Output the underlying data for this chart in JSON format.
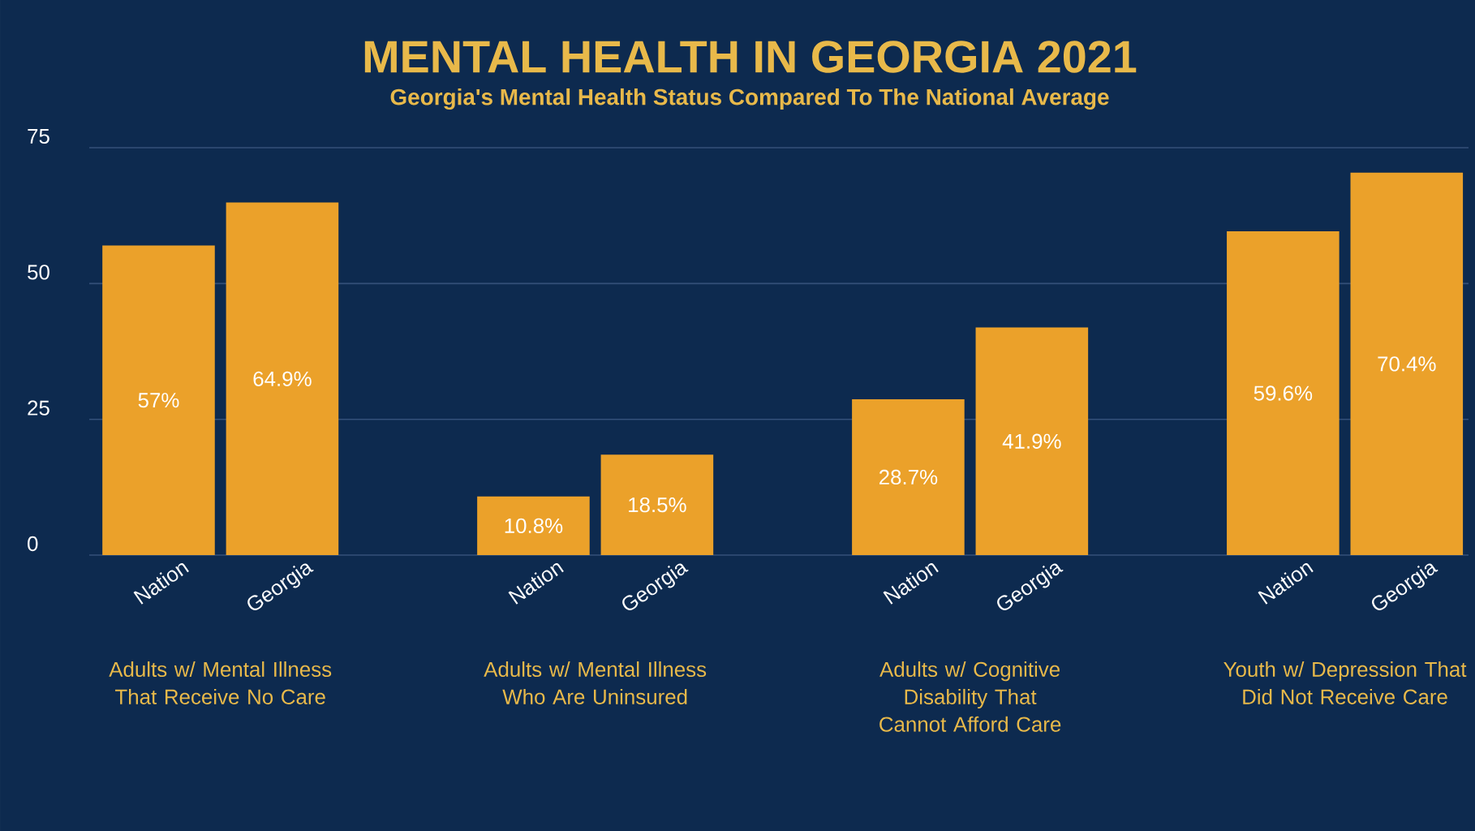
{
  "chart_data": {
    "type": "bar",
    "title": "MENTAL HEALTH IN GEORGIA 2021",
    "subtitle": "Georgia's Mental Health Status Compared To The National Average",
    "categories": [
      "Adults w/ Mental Illness That Receive No Care",
      "Adults w/ Mental Illness Who Are Uninsured",
      "Adults w/ Cognitive Disability That Cannot Afford Care",
      "Youth w/ Depression That Did Not Receive Care"
    ],
    "series": [
      {
        "name": "Nation",
        "color": "#eba12a",
        "values": [
          57,
          10.8,
          28.7,
          59.6
        ],
        "value_labels": [
          "57%",
          "10.8%",
          "28.7%",
          "59.6%"
        ]
      },
      {
        "name": "Georgia",
        "color": "#eba12a",
        "values": [
          64.9,
          18.5,
          41.9,
          70.4
        ],
        "value_labels": [
          "64.9%",
          "18.5%",
          "41.9%",
          "70.4%"
        ]
      }
    ],
    "ylim": [
      0,
      75
    ],
    "yticks": [
      0,
      25,
      50,
      75
    ],
    "grid": "y"
  }
}
